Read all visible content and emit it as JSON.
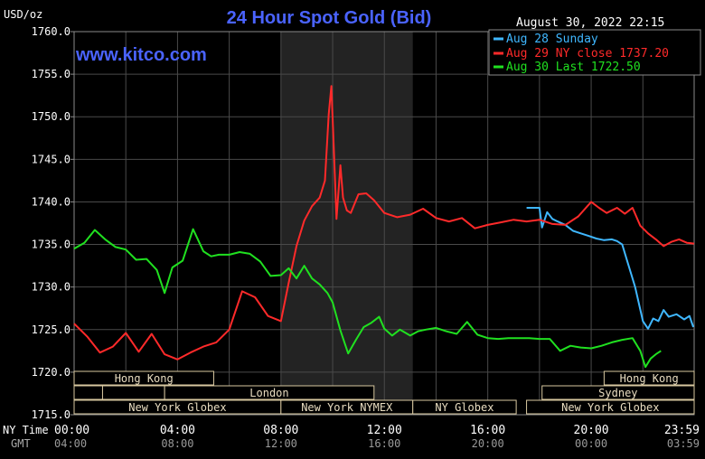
{
  "chart_data": {
    "type": "line",
    "title": "24 Hour Spot Gold (Bid)",
    "ylabel": "USD/oz",
    "watermark": "www.kitco.com",
    "timestamp": "August 30, 2022 22:15",
    "ylim": [
      1715,
      1760
    ],
    "y_ticks": [
      "1760.0",
      "1755.0",
      "1750.0",
      "1745.0",
      "1740.0",
      "1735.0",
      "1730.0",
      "1725.0",
      "1720.0",
      "1715.0"
    ],
    "x_row_labels": {
      "ny_time": "NY Time",
      "gmt": "GMT"
    },
    "x_ticks_ny": [
      "00:00",
      "04:00",
      "08:00",
      "12:00",
      "16:00",
      "20:00",
      "23:59"
    ],
    "x_ticks_gmt": [
      "04:00",
      "08:00",
      "12:00",
      "16:00",
      "20:00",
      "00:00",
      "03:59"
    ],
    "x_tick_hours": [
      0,
      4,
      8,
      12,
      16,
      20,
      23.983
    ],
    "shaded_region_hours": [
      8.0,
      13.1
    ],
    "grid": true,
    "legend_position": "top-right",
    "legend": [
      {
        "label": "Aug 28 Sunday",
        "color": "#3fb7ff"
      },
      {
        "label": "Aug 29 NY close 1737.20",
        "color": "#ff2a2a"
      },
      {
        "label": "Aug 30 Last 1722.50",
        "color": "#20e020"
      }
    ],
    "sessions": [
      {
        "label": "Hong Kong",
        "row": 0,
        "start": 0.0,
        "end": 5.4
      },
      {
        "label": "Hong Kong",
        "row": 0,
        "start": 20.5,
        "end": 23.983
      },
      {
        "label": "",
        "row": 1,
        "start": 0.0,
        "end": 1.1
      },
      {
        "label": "",
        "row": 1,
        "start": 1.1,
        "end": 3.5
      },
      {
        "label": "London",
        "row": 1,
        "start": 3.5,
        "end": 11.6
      },
      {
        "label": "Sydney",
        "row": 1,
        "start": 18.1,
        "end": 23.983
      },
      {
        "label": "New York Globex",
        "row": 2,
        "start": 0.0,
        "end": 8.0
      },
      {
        "label": "New York NYMEX",
        "row": 2,
        "start": 8.0,
        "end": 13.1
      },
      {
        "label": "NY Globex",
        "row": 2,
        "start": 13.1,
        "end": 17.1
      },
      {
        "label": "New York Globex",
        "row": 2,
        "start": 17.5,
        "end": 23.983
      }
    ],
    "series": [
      {
        "name": "Aug 28 Sunday",
        "color": "#3fb7ff",
        "x": [
          17.5,
          18.0,
          18.1,
          18.3,
          18.5,
          18.7,
          19.0,
          19.3,
          19.6,
          19.9,
          20.2,
          20.5,
          20.8,
          21.0,
          21.2,
          21.4,
          21.55,
          21.7,
          21.85,
          22.0,
          22.2,
          22.4,
          22.6,
          22.8,
          23.0,
          23.3,
          23.6,
          23.8,
          23.95
        ],
        "values": [
          1739.3,
          1739.3,
          1737.0,
          1738.8,
          1738.0,
          1737.7,
          1737.3,
          1736.6,
          1736.3,
          1736.0,
          1735.7,
          1735.5,
          1735.6,
          1735.4,
          1735.0,
          1733.0,
          1731.5,
          1730.0,
          1728.0,
          1726.0,
          1725.1,
          1726.3,
          1726.0,
          1727.3,
          1726.5,
          1726.8,
          1726.2,
          1726.6,
          1725.3
        ]
      },
      {
        "name": "Aug 29 NY close 1737.20",
        "color": "#ff2a2a",
        "x": [
          0.0,
          0.5,
          1.0,
          1.5,
          2.0,
          2.5,
          3.0,
          3.5,
          4.0,
          4.5,
          5.0,
          5.5,
          6.0,
          6.5,
          7.0,
          7.5,
          8.0,
          8.3,
          8.6,
          8.9,
          9.2,
          9.5,
          9.7,
          9.85,
          9.95,
          10.05,
          10.15,
          10.3,
          10.4,
          10.55,
          10.7,
          11.0,
          11.3,
          11.6,
          12.0,
          12.5,
          13.0,
          13.5,
          14.0,
          14.5,
          15.0,
          15.5,
          16.0,
          16.5,
          17.0,
          17.5,
          18.0,
          18.5,
          19.0,
          19.5,
          20.0,
          20.3,
          20.6,
          21.0,
          21.3,
          21.6,
          21.9,
          22.2,
          22.5,
          22.8,
          23.1,
          23.4,
          23.7,
          23.983
        ],
        "values": [
          1725.7,
          1724.2,
          1722.3,
          1723.0,
          1724.6,
          1722.4,
          1724.5,
          1722.1,
          1721.5,
          1722.3,
          1723.0,
          1723.5,
          1725.0,
          1729.5,
          1728.8,
          1726.6,
          1726.0,
          1730.5,
          1734.8,
          1737.8,
          1739.5,
          1740.5,
          1742.5,
          1750.3,
          1753.6,
          1745.8,
          1738.0,
          1744.3,
          1740.5,
          1739.0,
          1738.7,
          1740.9,
          1741.0,
          1740.2,
          1738.7,
          1738.2,
          1738.5,
          1739.2,
          1738.1,
          1737.7,
          1738.1,
          1736.9,
          1737.3,
          1737.6,
          1737.9,
          1737.7,
          1737.9,
          1737.4,
          1737.3,
          1738.3,
          1740.0,
          1739.3,
          1738.7,
          1739.3,
          1738.6,
          1739.3,
          1737.2,
          1736.3,
          1735.6,
          1734.8,
          1735.3,
          1735.6,
          1735.2,
          1735.1
        ]
      },
      {
        "name": "Aug 30 Last 1722.50",
        "color": "#20e020",
        "x": [
          0.0,
          0.4,
          0.8,
          1.2,
          1.6,
          2.0,
          2.4,
          2.8,
          3.2,
          3.5,
          3.8,
          4.2,
          4.6,
          5.0,
          5.3,
          5.6,
          6.0,
          6.4,
          6.8,
          7.2,
          7.6,
          8.0,
          8.3,
          8.6,
          8.9,
          9.2,
          9.5,
          9.8,
          10.0,
          10.3,
          10.6,
          10.9,
          11.2,
          11.5,
          11.8,
          12.0,
          12.3,
          12.6,
          13.0,
          13.3,
          13.6,
          14.0,
          14.4,
          14.8,
          15.2,
          15.6,
          16.0,
          16.4,
          16.8,
          17.2,
          17.6,
          18.0,
          18.4,
          18.8,
          19.2,
          19.6,
          20.0,
          20.4,
          20.8,
          21.2,
          21.6,
          21.9,
          22.1,
          22.3,
          22.5,
          22.7
        ],
        "values": [
          1734.5,
          1735.2,
          1736.7,
          1735.6,
          1734.7,
          1734.4,
          1733.2,
          1733.3,
          1732.0,
          1729.3,
          1732.3,
          1733.1,
          1736.8,
          1734.2,
          1733.6,
          1733.8,
          1733.8,
          1734.1,
          1733.9,
          1733.0,
          1731.3,
          1731.4,
          1732.2,
          1731.0,
          1732.5,
          1731.0,
          1730.3,
          1729.3,
          1728.2,
          1724.9,
          1722.2,
          1723.8,
          1725.3,
          1725.8,
          1726.5,
          1725.1,
          1724.3,
          1725.0,
          1724.3,
          1724.8,
          1725.0,
          1725.2,
          1724.8,
          1724.5,
          1725.9,
          1724.4,
          1724.0,
          1723.9,
          1724.0,
          1724.0,
          1724.0,
          1723.9,
          1723.9,
          1722.5,
          1723.1,
          1722.9,
          1722.8,
          1723.1,
          1723.5,
          1723.8,
          1724.0,
          1722.5,
          1720.6,
          1721.6,
          1722.1,
          1722.5
        ]
      }
    ]
  }
}
